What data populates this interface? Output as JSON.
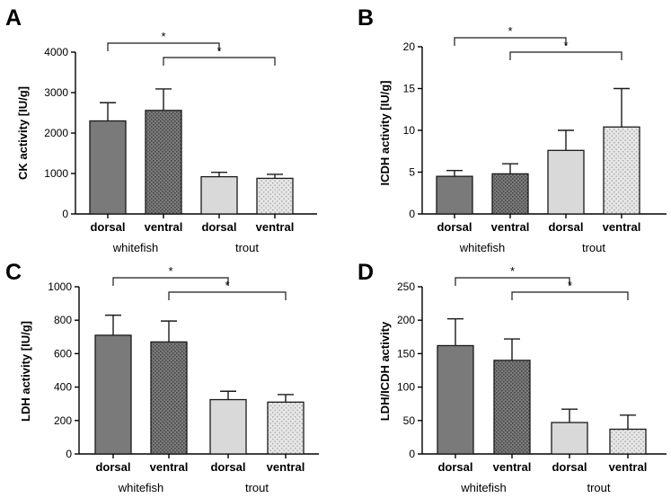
{
  "colors": {
    "dark": "#7a7a7a",
    "dark_dots": "#4a4a4a",
    "light": "#d9d9d9",
    "light_dots": "#a8a8a8",
    "stroke": "#1a1a1a"
  },
  "chart_data": [
    {
      "panel": "A",
      "type": "bar",
      "ylabel": "CK activity [IU/g]",
      "ylim": [
        0,
        4000
      ],
      "yticks": [
        0,
        1000,
        2000,
        3000,
        4000
      ],
      "categories": [
        "dorsal",
        "ventral",
        "dorsal",
        "ventral"
      ],
      "groups": [
        {
          "label": "whitefish",
          "members": [
            0,
            1
          ]
        },
        {
          "label": "trout",
          "members": [
            2,
            3
          ]
        }
      ],
      "fills": [
        "dark",
        "dark_dots",
        "light",
        "light_dots"
      ],
      "values": [
        2300,
        2560,
        920,
        880
      ],
      "errors": [
        450,
        530,
        110,
        100
      ],
      "significance": [
        {
          "from": 0,
          "to": 2,
          "level": 1,
          "label": "*"
        },
        {
          "from": 1,
          "to": 3,
          "level": 0,
          "label": "*"
        }
      ]
    },
    {
      "panel": "B",
      "type": "bar",
      "ylabel": "ICDH activity [IU/g]",
      "ylim": [
        0,
        20
      ],
      "yticks": [
        0,
        5,
        10,
        15,
        20
      ],
      "categories": [
        "dorsal",
        "ventral",
        "dorsal",
        "ventral"
      ],
      "groups": [
        {
          "label": "whitefish",
          "members": [
            0,
            1
          ]
        },
        {
          "label": "trout",
          "members": [
            2,
            3
          ]
        }
      ],
      "fills": [
        "dark",
        "dark_dots",
        "light",
        "light_dots"
      ],
      "values": [
        4.5,
        4.8,
        7.6,
        10.4
      ],
      "errors": [
        0.7,
        1.2,
        2.4,
        4.6
      ],
      "significance": [
        {
          "from": 0,
          "to": 2,
          "level": 1,
          "label": "*"
        },
        {
          "from": 1,
          "to": 3,
          "level": 0,
          "label": "*"
        }
      ]
    },
    {
      "panel": "C",
      "type": "bar",
      "ylabel": "LDH activity [IU/g]",
      "ylim": [
        0,
        1000
      ],
      "yticks": [
        0,
        200,
        400,
        600,
        800,
        1000
      ],
      "categories": [
        "dorsal",
        "ventral",
        "dorsal",
        "ventral"
      ],
      "groups": [
        {
          "label": "whitefish",
          "members": [
            0,
            1
          ]
        },
        {
          "label": "trout",
          "members": [
            2,
            3
          ]
        }
      ],
      "fills": [
        "dark",
        "dark_dots",
        "light",
        "light_dots"
      ],
      "values": [
        710,
        670,
        325,
        310
      ],
      "errors": [
        120,
        125,
        50,
        45
      ],
      "significance": [
        {
          "from": 0,
          "to": 2,
          "level": 1,
          "label": "*"
        },
        {
          "from": 1,
          "to": 3,
          "level": 0,
          "label": "*"
        }
      ]
    },
    {
      "panel": "D",
      "type": "bar",
      "ylabel": "LDH/ICDH activity",
      "ylim": [
        0,
        250
      ],
      "yticks": [
        0,
        50,
        100,
        150,
        200,
        250
      ],
      "categories": [
        "dorsal",
        "ventral",
        "dorsal",
        "ventral"
      ],
      "groups": [
        {
          "label": "whitefish",
          "members": [
            0,
            1
          ]
        },
        {
          "label": "trout",
          "members": [
            2,
            3
          ]
        }
      ],
      "fills": [
        "dark",
        "dark_dots",
        "light",
        "light_dots"
      ],
      "values": [
        162,
        140,
        47,
        37
      ],
      "errors": [
        40,
        32,
        20,
        21
      ],
      "significance": [
        {
          "from": 0,
          "to": 2,
          "level": 1,
          "label": "*"
        },
        {
          "from": 1,
          "to": 3,
          "level": 0,
          "label": "*"
        }
      ]
    }
  ]
}
